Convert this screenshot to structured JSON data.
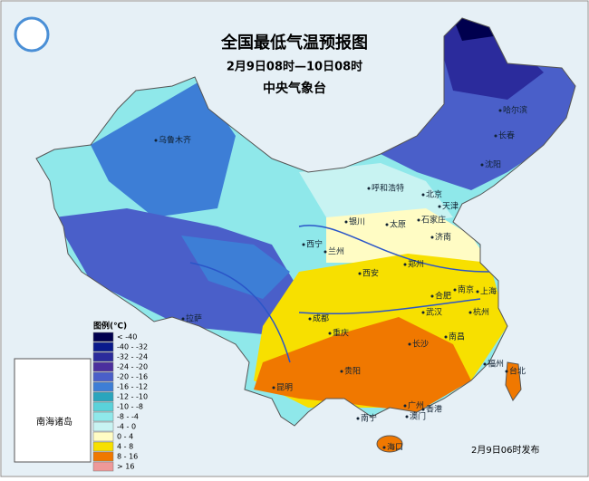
{
  "header": {
    "title": "全国最低气温预报图",
    "period": "2月9日08时—10日08时",
    "issuer": "中央气象台"
  },
  "legend": {
    "title": "图例(℃)",
    "items": [
      {
        "label": "< -40",
        "color": "#00004e"
      },
      {
        "label": "-40 - -32",
        "color": "#0a1a8c"
      },
      {
        "label": "-32 - -24",
        "color": "#2b2b9c"
      },
      {
        "label": "-24 - -20",
        "color": "#4b2f9e"
      },
      {
        "label": "-20 - -16",
        "color": "#4a5fc9"
      },
      {
        "label": "-16 - -12",
        "color": "#3d7ed6"
      },
      {
        "label": "-12 - -10",
        "color": "#2aa5bd"
      },
      {
        "label": "-10 - -8",
        "color": "#5ad2da"
      },
      {
        "label": "-8 - -4",
        "color": "#8fe8ea"
      },
      {
        "label": "-4 - 0",
        "color": "#c8f3f2"
      },
      {
        "label": "0 - 4",
        "color": "#fffcc4"
      },
      {
        "label": "4 - 8",
        "color": "#f7e000"
      },
      {
        "label": "8 - 16",
        "color": "#f07800"
      },
      {
        "label": "> 16",
        "color": "#ee9999"
      }
    ]
  },
  "cities": [
    "乌鲁木齐",
    "哈尔滨",
    "长春",
    "沈阳",
    "呼和浩特",
    "北京",
    "天津",
    "银川",
    "太原",
    "石家庄",
    "济南",
    "西宁",
    "兰州",
    "郑州",
    "西安",
    "合肥",
    "南京",
    "上海",
    "杭州",
    "武汉",
    "拉萨",
    "成都",
    "重庆",
    "长沙",
    "南昌",
    "贵阳",
    "福州",
    "台北",
    "昆明",
    "南宁",
    "广州",
    "香港",
    "澳门",
    "海口"
  ],
  "inset_label": "南海诸岛",
  "publish_time": "2月9日06时发布"
}
